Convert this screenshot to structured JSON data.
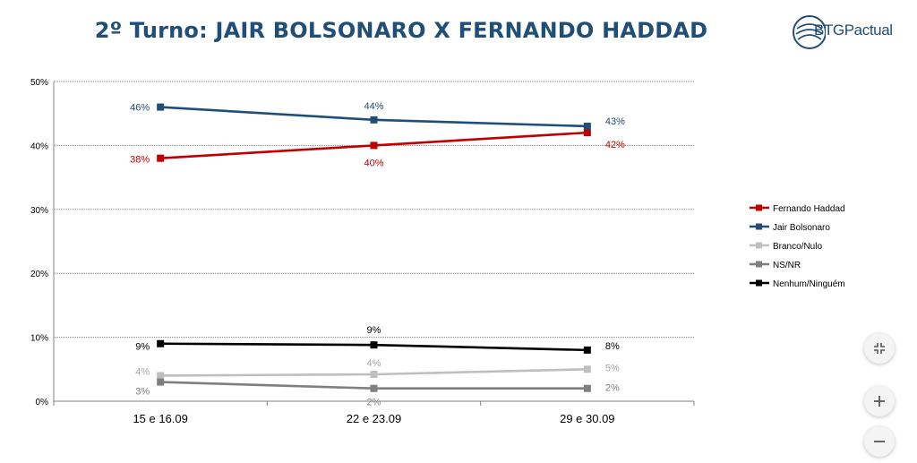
{
  "header": {
    "title": "2º Turno: JAIR BOLSONARO X FERNANDO HADDAD",
    "logo_text": "BTGPactual"
  },
  "colors": {
    "title": "#1f4e79",
    "haddad": "#c00000",
    "bolsonaro": "#1f4e79",
    "branco": "#bfbfbf",
    "nsnr": "#7f7f7f",
    "nenhum": "#000000"
  },
  "controls": {
    "collapse_icon": "collapse-icon",
    "zoom_in_icon": "plus-icon",
    "zoom_out_icon": "minus-icon"
  },
  "chart_data": {
    "type": "line",
    "categories": [
      "15 e 16.09",
      "22 e 23.09",
      "29 e 30.09"
    ],
    "ylim": [
      0,
      50
    ],
    "yticks": [
      "0%",
      "10%",
      "20%",
      "30%",
      "40%",
      "50%"
    ],
    "ytick_values": [
      0,
      10,
      20,
      30,
      40,
      50
    ],
    "grid": true,
    "legend": "right",
    "series": [
      {
        "name": "Fernando Haddad",
        "color": "#c00000",
        "values": [
          38,
          40,
          42
        ],
        "labels": [
          "38%",
          "40%",
          "42%"
        ]
      },
      {
        "name": "Jair Bolsonaro",
        "color": "#1f4e79",
        "values": [
          46,
          44,
          43
        ],
        "labels": [
          "46%",
          "44%",
          "43%"
        ]
      },
      {
        "name": "Branco/Nulo",
        "color": "#bfbfbf",
        "values": [
          4,
          4.2,
          5
        ],
        "labels": [
          "4%",
          "4%",
          "5%"
        ]
      },
      {
        "name": "NS/NR",
        "color": "#7f7f7f",
        "values": [
          3,
          2,
          2
        ],
        "labels": [
          "3%",
          "2%",
          "2%"
        ]
      },
      {
        "name": "Nenhum/Ninguém",
        "color": "#000000",
        "values": [
          9,
          8.8,
          8
        ],
        "labels": [
          "9%",
          "9%",
          "8%"
        ]
      }
    ]
  }
}
